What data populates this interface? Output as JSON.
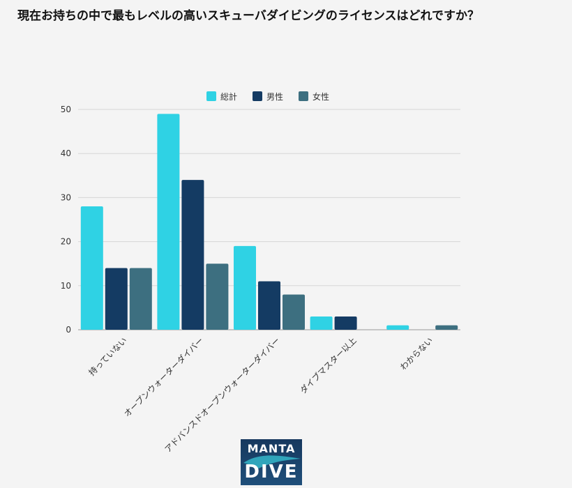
{
  "chart_data": {
    "type": "bar",
    "title": "現在お持ちの中で最もレベルの高いスキューバダイビングのライセンスはどれですか？",
    "categories": [
      "持っていない",
      "オープンウォーターダイバー",
      "アドバンスドオープンウォーターダイバー",
      "ダイブマスター以上",
      "わからない"
    ],
    "series": [
      {
        "name": "総計",
        "values": [
          28,
          49,
          19,
          3,
          1
        ],
        "color": "#2fd2e4"
      },
      {
        "name": "男性",
        "values": [
          14,
          34,
          11,
          3,
          0
        ],
        "color": "#143b63"
      },
      {
        "name": "女性",
        "values": [
          14,
          15,
          8,
          0,
          1
        ],
        "color": "#3d6f80"
      }
    ],
    "ylim": [
      0,
      50
    ],
    "yticks": [
      0,
      10,
      20,
      30,
      40,
      50
    ],
    "grid": true,
    "legend": "top-center",
    "xlabel": "",
    "ylabel": ""
  },
  "logo": {
    "line1": "MANTA",
    "line2": "DIVE"
  }
}
